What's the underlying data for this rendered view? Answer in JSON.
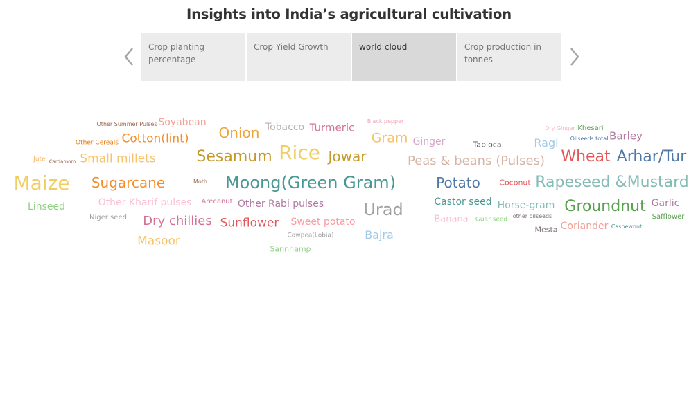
{
  "header": {
    "title": "Insights into India’s agricultural cultivation"
  },
  "story_nav": {
    "prev_icon": "chevron-left-icon",
    "next_icon": "chevron-right-icon",
    "tabs": [
      {
        "label": "Crop planting percentage",
        "active": false
      },
      {
        "label": "Crop Yield Growth",
        "active": false
      },
      {
        "label": "world cloud",
        "active": true
      },
      {
        "label": "Crop production in tonnes",
        "active": false
      }
    ]
  },
  "word_cloud": {
    "words": [
      {
        "text": "Other Summer Pulses",
        "color": "#9c6a50"
      },
      {
        "text": "Soyabean",
        "color": "#f0a096"
      },
      {
        "text": "Onion",
        "color": "#f0a23c"
      },
      {
        "text": "Tobacco",
        "color": "#bab0ac"
      },
      {
        "text": "Turmeric",
        "color": "#d37295"
      },
      {
        "text": "Black pepper",
        "color": "#f3a7b8"
      },
      {
        "text": "Gram",
        "color": "#f6c26a"
      },
      {
        "text": "Dry Ginger",
        "color": "#f3b8c6"
      },
      {
        "text": "Khesari",
        "color": "#59a14f"
      },
      {
        "text": "Oilseeds total",
        "color": "#4e79a7"
      },
      {
        "text": "Barley",
        "color": "#b07aa1"
      },
      {
        "text": "Other Cereals",
        "color": "#e17c05"
      },
      {
        "text": "Cotton(lint)",
        "color": "#f28e2b"
      },
      {
        "text": "Ginger",
        "color": "#d4a6c8"
      },
      {
        "text": "Tapioca",
        "color": "#555555"
      },
      {
        "text": "Ragi",
        "color": "#a0cbe8"
      },
      {
        "text": "Jute",
        "color": "#f6b26b"
      },
      {
        "text": "Cardamom",
        "color": "#9c6a50"
      },
      {
        "text": "Small millets",
        "color": "#f6c26a"
      },
      {
        "text": "Sesamum",
        "color": "#c59a2a"
      },
      {
        "text": "Rice",
        "color": "#f1ce63"
      },
      {
        "text": "Jowar",
        "color": "#c59a2a"
      },
      {
        "text": "Peas & beans (Pulses)",
        "color": "#d7b5a6"
      },
      {
        "text": "Wheat",
        "color": "#e15759"
      },
      {
        "text": "Arhar/Tur",
        "color": "#4e79a7"
      },
      {
        "text": "Maize",
        "color": "#f1ce63"
      },
      {
        "text": "Sugarcane",
        "color": "#f28e2b"
      },
      {
        "text": "Moth",
        "color": "#9c6a50"
      },
      {
        "text": "Moong(Green Gram)",
        "color": "#499894"
      },
      {
        "text": "Potato",
        "color": "#4e79a7"
      },
      {
        "text": "Coconut",
        "color": "#e15759"
      },
      {
        "text": "Rapeseed &Mustard",
        "color": "#86bcb6"
      },
      {
        "text": "Linseed",
        "color": "#8cd17d"
      },
      {
        "text": "Other Kharif pulses",
        "color": "#fabfd2"
      },
      {
        "text": "Arecanut",
        "color": "#d37295"
      },
      {
        "text": "Other Rabi pulses",
        "color": "#b07aa1"
      },
      {
        "text": "Urad",
        "color": "#a0a0a0"
      },
      {
        "text": "Castor seed",
        "color": "#499894"
      },
      {
        "text": "Horse-gram",
        "color": "#86bcb6"
      },
      {
        "text": "Groundnut",
        "color": "#59a14f"
      },
      {
        "text": "Garlic",
        "color": "#b07aa1"
      },
      {
        "text": "Niger seed",
        "color": "#a0a0a0"
      },
      {
        "text": "Dry chillies",
        "color": "#d37295"
      },
      {
        "text": "Sunflower",
        "color": "#e15759"
      },
      {
        "text": "Sweet potato",
        "color": "#fc9aa0"
      },
      {
        "text": "Banana",
        "color": "#fabfd2"
      },
      {
        "text": "Guar seed",
        "color": "#8cd17d"
      },
      {
        "text": "other oilseeds",
        "color": "#79706e"
      },
      {
        "text": "Mesta",
        "color": "#79706e"
      },
      {
        "text": "Coriander",
        "color": "#f0a096"
      },
      {
        "text": "Cashewnut",
        "color": "#499894"
      },
      {
        "text": "Safflower",
        "color": "#59a14f"
      },
      {
        "text": "Masoor",
        "color": "#f6c26a"
      },
      {
        "text": "Cowpea(Lobia)",
        "color": "#a0a0a0"
      },
      {
        "text": "Bajra",
        "color": "#a0cbe8"
      },
      {
        "text": "Sannhamp",
        "color": "#8cd17d"
      }
    ]
  }
}
